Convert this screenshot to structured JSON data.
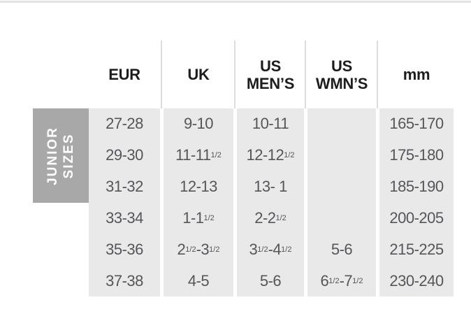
{
  "page": {
    "background": "#ffffff",
    "top_rule_color": "#e3e3e3"
  },
  "colors": {
    "column_band_bg": "#e9e9e9",
    "group_label_bg": "#a8a8a8",
    "group_label_text": "#ffffff",
    "header_text": "#1d1d1d",
    "body_text": "#55555a",
    "header_divider": "#dcdcdc"
  },
  "chart_data": {
    "type": "table",
    "title": "",
    "row_group_label": "JUNIOR SIZES",
    "columns": [
      "EUR",
      "UK",
      "US MEN’S",
      "US WMN’S",
      "mm"
    ],
    "rows": [
      {
        "eur": "27-28",
        "uk": "9-10",
        "us_mens": "10-11",
        "us_wmns": "",
        "mm": "165-170"
      },
      {
        "eur": "29-30",
        "uk": "11-11^1/2^",
        "us_mens": "12-12^1/2^",
        "us_wmns": "",
        "mm": "175-180"
      },
      {
        "eur": "31-32",
        "uk": "12-13",
        "us_mens": "13- 1",
        "us_wmns": "",
        "mm": "185-190"
      },
      {
        "eur": "33-34",
        "uk": "1-1^1/2^",
        "us_mens": "2-2^1/2^",
        "us_wmns": "",
        "mm": "200-205"
      },
      {
        "eur": "35-36",
        "uk": "2^1/2^-3^1/2^",
        "us_mens": "3^1/2^-4^1/2^",
        "us_wmns": "5-6",
        "mm": "215-225"
      },
      {
        "eur": "37-38",
        "uk": "4-5",
        "us_mens": "5-6",
        "us_wmns": "6^1/2^-7^1/2^",
        "mm": "230-240"
      }
    ]
  }
}
